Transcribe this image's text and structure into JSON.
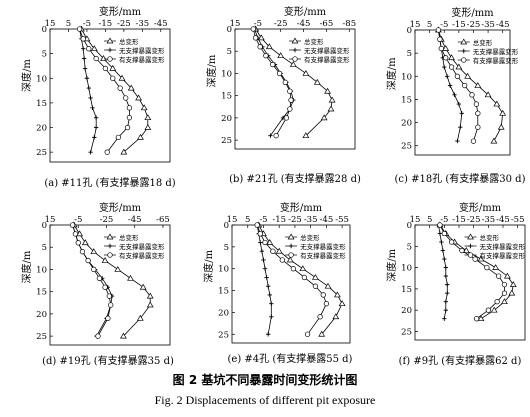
{
  "figure": {
    "caption_cn": "图 2 基坑不同暴露时间变形统计图",
    "caption_en": "Fig. 2 Displacements of different pit exposure"
  },
  "chart_data": [
    {
      "type": "line",
      "panel_label": "(a) #11孔 (有支撑暴露18 d)",
      "xlabel": "变形/mm",
      "ylabel": "深度/m",
      "x_axis_position": "top",
      "y_inverted": true,
      "xlim": [
        15,
        -50
      ],
      "xticks": [
        15,
        5,
        -5,
        -15,
        -25,
        -35,
        -45
      ],
      "ylim": [
        0,
        27
      ],
      "yticks": [
        0,
        5,
        10,
        15,
        20,
        25
      ],
      "legend_position": "top-right",
      "series": [
        {
          "name": "总变形",
          "marker": "triangle",
          "x": [
            -2,
            -5,
            -9,
            -14,
            -19,
            -24,
            -29,
            -33,
            -36,
            -38,
            -38,
            -34,
            -25
          ],
          "y": [
            0,
            2,
            4,
            6,
            8,
            10,
            12,
            14,
            16,
            18,
            20,
            22,
            25
          ]
        },
        {
          "name": "无支撑暴露变形",
          "marker": "cross",
          "x": [
            -1,
            -2,
            -3,
            -3.5,
            -4,
            -5,
            -6,
            -7,
            -8,
            -10,
            -10,
            -9,
            -7
          ],
          "y": [
            0,
            2,
            4,
            6,
            8,
            10,
            12,
            14,
            16,
            18,
            20,
            22,
            25
          ]
        },
        {
          "name": "有支撑暴露变形",
          "marker": "circle",
          "x": [
            -1,
            -3,
            -6,
            -10,
            -15,
            -19,
            -23,
            -26,
            -28,
            -28,
            -27,
            -22,
            -16
          ],
          "y": [
            0,
            2,
            4,
            6,
            8,
            10,
            12,
            14,
            16,
            18,
            20,
            22,
            25
          ]
        }
      ]
    },
    {
      "type": "line",
      "panel_label": "(b) #21孔 (有支撑暴露28 d)",
      "xlabel": "变形/mm",
      "ylabel": "深度/m",
      "x_axis_position": "top",
      "y_inverted": true,
      "xlim": [
        15,
        -90
      ],
      "xticks": [
        15,
        -5,
        -25,
        -45,
        -65,
        -85
      ],
      "ylim": [
        0,
        27
      ],
      "yticks": [
        0,
        5,
        10,
        15,
        20,
        25
      ],
      "legend_position": "top-right",
      "series": [
        {
          "name": "总变形",
          "marker": "triangle",
          "x": [
            -3,
            -8,
            -15,
            -25,
            -36,
            -47,
            -57,
            -66,
            -70,
            -69,
            -63,
            -47
          ],
          "y": [
            0,
            2,
            4,
            6,
            8,
            10,
            12,
            14,
            16,
            18,
            20,
            24
          ]
        },
        {
          "name": "无支撑暴露变形",
          "marker": "cross",
          "x": [
            -2,
            -5,
            -9,
            -14,
            -20,
            -25,
            -30,
            -34,
            -36,
            -33,
            -27,
            -16
          ],
          "y": [
            0,
            2,
            4,
            6,
            8,
            10,
            12,
            14,
            16,
            18,
            20,
            24
          ]
        },
        {
          "name": "有支撑暴露变形",
          "marker": "circle",
          "x": [
            -1,
            -3,
            -7,
            -12,
            -18,
            -24,
            -29,
            -33,
            -34,
            -33,
            -30,
            -21
          ],
          "y": [
            0,
            2,
            4,
            6,
            8,
            10,
            12,
            14,
            16,
            18,
            20,
            24
          ]
        }
      ]
    },
    {
      "type": "line",
      "panel_label": "(c) #18孔 (有支撑暴露30 d)",
      "xlabel": "变形/mm",
      "ylabel": "深度/m",
      "x_axis_position": "top",
      "y_inverted": true,
      "xlim": [
        15,
        -50
      ],
      "xticks": [
        15,
        5,
        -5,
        -15,
        -25,
        -35,
        -45
      ],
      "ylim": [
        0,
        27
      ],
      "yticks": [
        0,
        5,
        10,
        15,
        20,
        25
      ],
      "legend_position": "top-right",
      "series": [
        {
          "name": "总变形",
          "marker": "triangle",
          "x": [
            -1,
            -3,
            -6,
            -10,
            -15,
            -21,
            -28,
            -35,
            -41,
            -45,
            -44,
            -39
          ],
          "y": [
            0,
            2,
            4,
            6,
            8,
            10,
            12,
            14,
            16,
            18,
            21,
            24
          ]
        },
        {
          "name": "无支撑暴露变形",
          "marker": "cross",
          "x": [
            -1,
            -2,
            -3,
            -4,
            -5,
            -7,
            -9,
            -12,
            -15,
            -17,
            -16,
            -14
          ],
          "y": [
            0,
            2,
            4,
            6,
            8,
            10,
            12,
            14,
            16,
            18,
            21,
            24
          ]
        },
        {
          "name": "有支撑暴露变形",
          "marker": "circle",
          "x": [
            -1,
            -2,
            -3,
            -6,
            -10,
            -14,
            -19,
            -24,
            -27,
            -28,
            -28,
            -25
          ],
          "y": [
            0,
            2,
            4,
            6,
            8,
            10,
            12,
            14,
            16,
            18,
            21,
            24
          ]
        }
      ]
    },
    {
      "type": "line",
      "panel_label": "(d) #19孔 (有支撑暴露35 d)",
      "xlabel": "变形/mm",
      "ylabel": "深度/m",
      "x_axis_position": "top",
      "y_inverted": true,
      "xlim": [
        15,
        -70
      ],
      "xticks": [
        15,
        -5,
        -25,
        -45,
        -65
      ],
      "ylim": [
        0,
        27
      ],
      "yticks": [
        0,
        5,
        10,
        15,
        20,
        25
      ],
      "legend_position": "top-right",
      "series": [
        {
          "name": "总变形",
          "marker": "triangle",
          "x": [
            -2,
            -6,
            -10,
            -16,
            -24,
            -33,
            -42,
            -51,
            -56,
            -56,
            -49,
            -37
          ],
          "y": [
            0,
            2,
            4,
            6,
            8,
            10,
            12,
            14,
            16,
            18,
            21,
            25
          ]
        },
        {
          "name": "无支撑暴露变形",
          "marker": "cross",
          "x": [
            -1,
            -3,
            -5,
            -8,
            -12,
            -17,
            -22,
            -26,
            -29,
            -28,
            -25,
            -18
          ],
          "y": [
            0,
            2,
            4,
            6,
            8,
            10,
            12,
            14,
            16,
            18,
            21,
            25
          ]
        },
        {
          "name": "有支撑暴露变形",
          "marker": "circle",
          "x": [
            -1,
            -3,
            -5,
            -8,
            -12,
            -16,
            -20,
            -24,
            -27,
            -28,
            -26,
            -19
          ],
          "y": [
            0,
            2,
            4,
            6,
            8,
            10,
            12,
            14,
            16,
            18,
            21,
            25
          ]
        }
      ]
    },
    {
      "type": "line",
      "panel_label": "(e) #4孔 (有支撑暴露55 d)",
      "xlabel": "变形/mm",
      "ylabel": "深度/m",
      "x_axis_position": "top",
      "y_inverted": true,
      "xlim": [
        15,
        -60
      ],
      "xticks": [
        15,
        5,
        -5,
        -15,
        -25,
        -35,
        -45,
        -55
      ],
      "ylim": [
        0,
        27
      ],
      "yticks": [
        0,
        5,
        10,
        15,
        20,
        25
      ],
      "legend_position": "top-right",
      "series": [
        {
          "name": "总变形",
          "marker": "triangle",
          "x": [
            -2,
            -5,
            -9,
            -15,
            -22,
            -30,
            -38,
            -46,
            -52,
            -55,
            -51,
            -42
          ],
          "y": [
            0,
            2,
            4,
            6,
            8,
            10,
            12,
            14,
            16,
            18,
            21,
            25
          ]
        },
        {
          "name": "无支撑暴露变形",
          "marker": "cross",
          "x": [
            -1,
            -2,
            -3,
            -4,
            -5,
            -6,
            -7,
            -8,
            -9,
            -10,
            -10,
            -8
          ],
          "y": [
            0,
            2,
            4,
            6,
            8,
            10,
            12,
            14,
            16,
            18,
            21,
            25
          ]
        },
        {
          "name": "有支撑暴露变形",
          "marker": "circle",
          "x": [
            -1,
            -3,
            -6,
            -11,
            -17,
            -24,
            -31,
            -38,
            -43,
            -45,
            -41,
            -33
          ],
          "y": [
            0,
            2,
            4,
            6,
            8,
            10,
            12,
            14,
            16,
            18,
            21,
            25
          ]
        }
      ]
    },
    {
      "type": "line",
      "panel_label": "(f) #9孔 (有支撑暴露62 d)",
      "xlabel": "变形/mm",
      "ylabel": "深度/m",
      "x_axis_position": "top",
      "y_inverted": true,
      "xlim": [
        15,
        -60
      ],
      "xticks": [
        15,
        5,
        -5,
        -15,
        -25,
        -35,
        -45,
        -55
      ],
      "ylim": [
        0,
        27
      ],
      "yticks": [
        0,
        5,
        10,
        15,
        20,
        25
      ],
      "legend_position": "top-right",
      "series": [
        {
          "name": "总变形",
          "marker": "triangle",
          "x": [
            -2,
            -6,
            -12,
            -20,
            -30,
            -40,
            -48,
            -52,
            -51,
            -46,
            -39,
            -30
          ],
          "y": [
            0,
            2,
            4,
            6,
            8,
            10,
            12,
            14,
            16,
            18,
            20,
            22
          ]
        },
        {
          "name": "无支撑暴露变形",
          "marker": "cross",
          "x": [
            -1,
            -2,
            -3,
            -4,
            -5,
            -6,
            -6,
            -7,
            -7,
            -6,
            -6,
            -5
          ],
          "y": [
            0,
            2,
            4,
            6,
            8,
            10,
            12,
            14,
            16,
            18,
            20,
            22
          ]
        },
        {
          "name": "有支撑暴露变形",
          "marker": "circle",
          "x": [
            -2,
            -5,
            -10,
            -17,
            -26,
            -34,
            -42,
            -46,
            -46,
            -41,
            -35,
            -27
          ],
          "y": [
            0,
            2,
            4,
            6,
            8,
            10,
            12,
            14,
            16,
            18,
            20,
            22
          ]
        }
      ]
    }
  ]
}
